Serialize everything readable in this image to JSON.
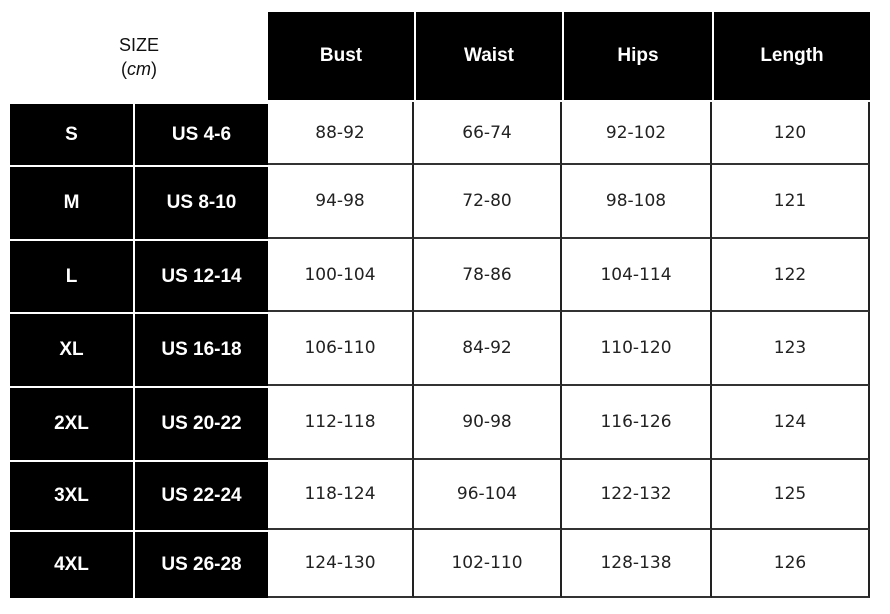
{
  "size_header": {
    "title": "SIZE",
    "unit": "cm"
  },
  "columns": [
    "Bust",
    "Waist",
    "Hips",
    "Length"
  ],
  "rows": [
    {
      "size": "S",
      "us": "US 4-6",
      "values": [
        "88-92",
        "66-74",
        "92-102",
        "120"
      ]
    },
    {
      "size": "M",
      "us": "US 8-10",
      "values": [
        "94-98",
        "72-80",
        "98-108",
        "121"
      ]
    },
    {
      "size": "L",
      "us": "US 12-14",
      "values": [
        "100-104",
        "78-86",
        "104-114",
        "122"
      ]
    },
    {
      "size": "XL",
      "us": "US 16-18",
      "values": [
        "106-110",
        "84-92",
        "110-120",
        "123"
      ]
    },
    {
      "size": "2XL",
      "us": "US 20-22",
      "values": [
        "112-118",
        "90-98",
        "116-126",
        "124"
      ]
    },
    {
      "size": "3XL",
      "us": "US 22-24",
      "values": [
        "118-124",
        "96-104",
        "122-132",
        "125"
      ]
    },
    {
      "size": "4XL",
      "us": "US 26-28",
      "values": [
        "124-130",
        "102-110",
        "128-138",
        "126"
      ]
    }
  ]
}
